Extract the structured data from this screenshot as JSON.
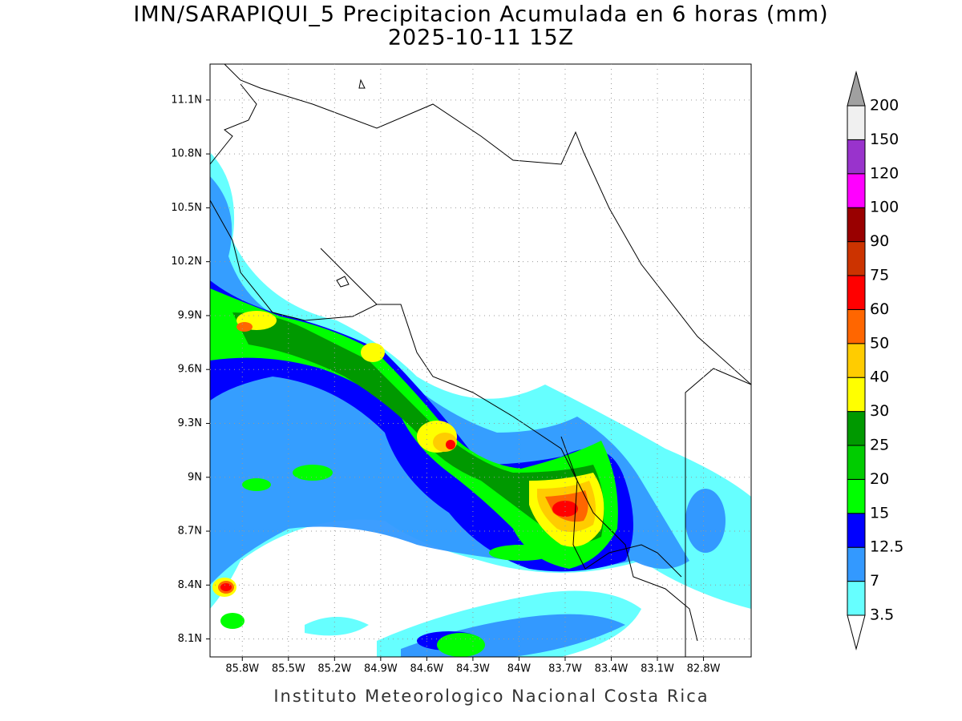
{
  "title": "IMN/SARAPIQUI_5 Precipitacion Acumulada en 6 horas (mm)",
  "subtitle": "2025-10-11 15Z",
  "footer": "Instituto Meteorologico Nacional Costa Rica",
  "map": {
    "lon_range": [
      86.01,
      82.49
    ],
    "lat_range": [
      8.0,
      11.3
    ],
    "lat_ticks": [
      {
        "value": 11.1,
        "label": "11.1N"
      },
      {
        "value": 10.8,
        "label": "10.8N"
      },
      {
        "value": 10.5,
        "label": "10.5N"
      },
      {
        "value": 10.2,
        "label": "10.2N"
      },
      {
        "value": 9.9,
        "label": "9.9N"
      },
      {
        "value": 9.6,
        "label": "9.6N"
      },
      {
        "value": 9.3,
        "label": "9.3N"
      },
      {
        "value": 9,
        "label": "9N"
      },
      {
        "value": 8.7,
        "label": "8.7N"
      },
      {
        "value": 8.4,
        "label": "8.4N"
      },
      {
        "value": 8.1,
        "label": "8.1N"
      }
    ],
    "lon_ticks": [
      {
        "value": 85.8,
        "label": "85.8W"
      },
      {
        "value": 85.5,
        "label": "85.5W"
      },
      {
        "value": 85.2,
        "label": "85.2W"
      },
      {
        "value": 84.9,
        "label": "84.9W"
      },
      {
        "value": 84.6,
        "label": "84.6W"
      },
      {
        "value": 84.3,
        "label": "84.3W"
      },
      {
        "value": 84,
        "label": "84W"
      },
      {
        "value": 83.7,
        "label": "83.7W"
      },
      {
        "value": 83.4,
        "label": "83.4W"
      },
      {
        "value": 83.1,
        "label": "83.1W"
      },
      {
        "value": 82.8,
        "label": "82.8W"
      }
    ]
  },
  "colorbar": {
    "levels": [
      {
        "value": 3.5,
        "label": "3.5"
      },
      {
        "value": 7,
        "label": "7"
      },
      {
        "value": 12.5,
        "label": "12.5"
      },
      {
        "value": 15,
        "label": "15"
      },
      {
        "value": 20,
        "label": "20"
      },
      {
        "value": 25,
        "label": "25"
      },
      {
        "value": 30,
        "label": "30"
      },
      {
        "value": 40,
        "label": "40"
      },
      {
        "value": 50,
        "label": "50"
      },
      {
        "value": 60,
        "label": "60"
      },
      {
        "value": 75,
        "label": "75"
      },
      {
        "value": 90,
        "label": "90"
      },
      {
        "value": 100,
        "label": "100"
      },
      {
        "value": 120,
        "label": "120"
      },
      {
        "value": 150,
        "label": "150"
      },
      {
        "value": 200,
        "label": "200"
      }
    ],
    "colors": [
      "#66ffff",
      "#3399ff",
      "#0000ff",
      "#00ff00",
      "#00cc00",
      "#009900",
      "#ffff00",
      "#ffcc00",
      "#ff6600",
      "#ff0000",
      "#cc3300",
      "#990000",
      "#ff00ff",
      "#9933cc",
      "#f0f0f0"
    ],
    "below_color": "#ffffff",
    "above_color": "#a0a0a0"
  }
}
